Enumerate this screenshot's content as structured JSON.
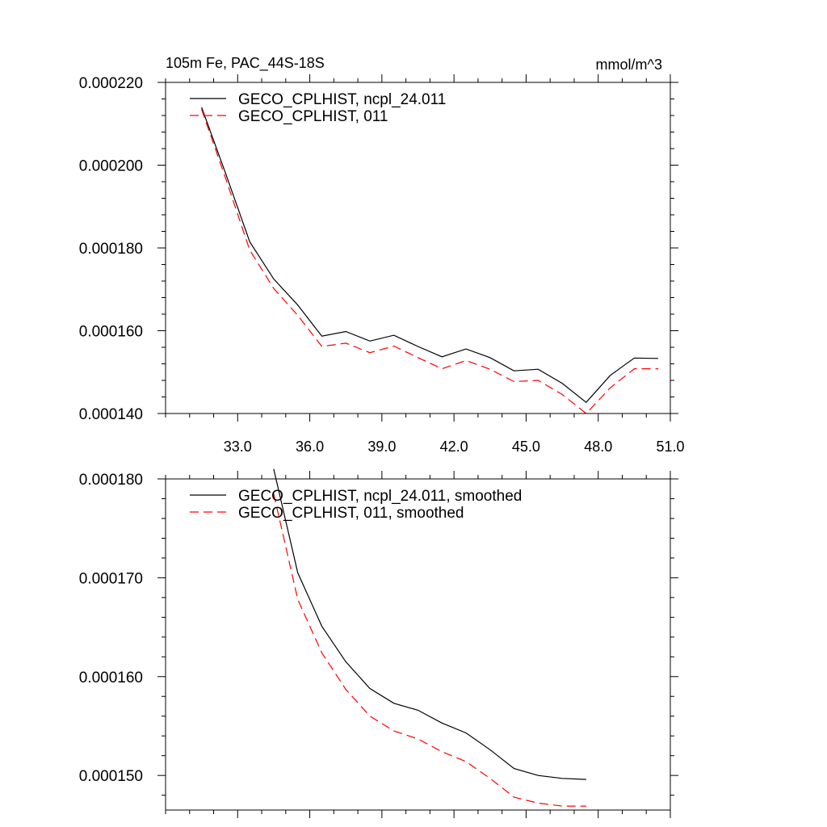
{
  "chart_data": [
    {
      "type": "line",
      "title": "105m Fe, PAC_44S-18S",
      "units": "mmol/m^3",
      "x": [
        31.5,
        32.5,
        33.5,
        34.5,
        35.5,
        36.5,
        37.5,
        38.5,
        39.5,
        40.5,
        41.5,
        42.5,
        43.5,
        44.5,
        45.5,
        46.5,
        47.5,
        48.5,
        49.5,
        50.5
      ],
      "xlim": [
        30.0,
        51.0
      ],
      "xticks": [
        33.0,
        36.0,
        39.0,
        42.0,
        45.0,
        48.0,
        51.0
      ],
      "xtick_labels": [
        "33.0",
        "36.0",
        "39.0",
        "42.0",
        "45.0",
        "48.0",
        "51.0"
      ],
      "ylim": [
        0.00014,
        0.00022
      ],
      "yticks": [
        0.00014,
        0.00016,
        0.00018,
        0.0002,
        0.00022
      ],
      "ytick_labels": [
        "0.000140",
        "0.000160",
        "0.000180",
        "0.000200",
        "0.000220"
      ],
      "legend_location": "top-left",
      "series": [
        {
          "name": "GECO_CPLHIST, ncpl_24.011",
          "color": "#000000",
          "dash": "solid",
          "values": [
            0.000214,
            0.000198,
            0.0001815,
            0.0001725,
            0.0001662,
            0.0001587,
            0.0001598,
            0.0001575,
            0.0001589,
            0.0001562,
            0.0001537,
            0.0001556,
            0.0001535,
            0.0001503,
            0.0001507,
            0.0001473,
            0.0001427,
            0.0001492,
            0.0001534,
            0.0001533
          ]
        },
        {
          "name": "GECO_CPLHIST, 011",
          "color": "#ff0000",
          "dash": "dashed",
          "values": [
            0.0002135,
            0.0001968,
            0.0001795,
            0.0001702,
            0.0001637,
            0.0001562,
            0.000157,
            0.0001547,
            0.0001563,
            0.0001535,
            0.0001508,
            0.0001528,
            0.0001507,
            0.0001477,
            0.000148,
            0.0001446,
            0.00014,
            0.0001462,
            0.0001508,
            0.0001508
          ]
        }
      ]
    },
    {
      "type": "line",
      "title": "",
      "x": [
        31.5,
        32.5,
        33.5,
        34.5,
        35.5,
        36.5,
        37.5,
        38.5,
        39.5,
        40.5,
        41.5,
        42.5,
        43.5,
        44.5,
        45.5,
        46.5,
        47.5,
        48.5,
        49.5,
        50.5
      ],
      "xlim": [
        30.0,
        51.0
      ],
      "xticks": [
        33.0,
        36.0,
        39.0,
        42.0,
        45.0,
        48.0,
        51.0
      ],
      "ylim": [
        0.0001465,
        0.00018
      ],
      "yticks": [
        0.00015,
        0.00016,
        0.00017,
        0.00018
      ],
      "ytick_labels": [
        "0.000150",
        "0.000160",
        "0.000170",
        "0.000180"
      ],
      "legend_location": "top-left",
      "series": [
        {
          "name": "GECO_CPLHIST, ncpl_24.011, smoothed",
          "color": "#000000",
          "dash": "solid",
          "values": [
            null,
            null,
            null,
            0.000181,
            0.0001705,
            0.0001651,
            0.0001615,
            0.0001588,
            0.0001573,
            0.0001566,
            0.0001553,
            0.0001543,
            0.0001526,
            0.0001507,
            0.00015,
            0.0001497,
            0.0001496,
            null,
            null,
            null
          ]
        },
        {
          "name": "GECO_CPLHIST, 011, smoothed",
          "color": "#ff0000",
          "dash": "dashed",
          "values": [
            null,
            null,
            null,
            0.0001785,
            0.0001678,
            0.0001624,
            0.0001587,
            0.000156,
            0.0001545,
            0.0001537,
            0.0001524,
            0.0001514,
            0.0001497,
            0.0001478,
            0.0001472,
            0.0001469,
            0.0001469,
            null,
            null,
            null
          ]
        }
      ]
    }
  ]
}
